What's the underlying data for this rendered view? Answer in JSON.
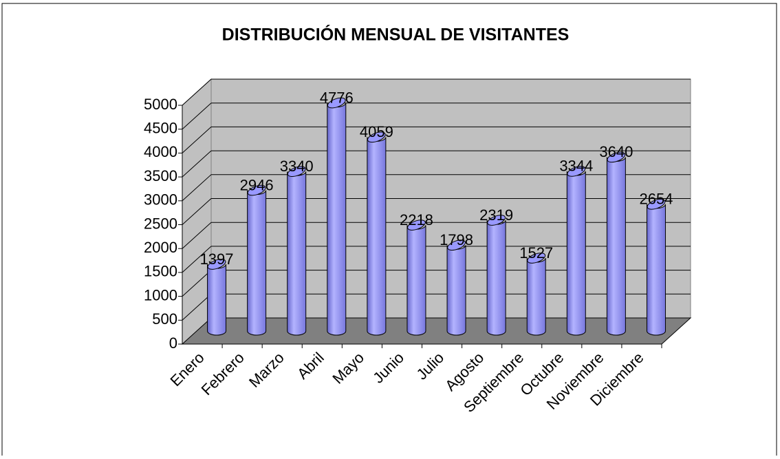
{
  "chart_data": {
    "type": "bar",
    "title": "DISTRIBUCIÓN MENSUAL DE VISITANTES",
    "categories": [
      "Enero",
      "Febrero",
      "Marzo",
      "Abril",
      "Mayo",
      "Junio",
      "Julio",
      "Agosto",
      "Septiembre",
      "Octubre",
      "Noviembre",
      "Diciembre"
    ],
    "values": [
      1397,
      2946,
      3340,
      4776,
      4059,
      2218,
      1798,
      2319,
      1527,
      3344,
      3640,
      2654
    ],
    "color": "#9999ff",
    "ylim": [
      0,
      5000
    ],
    "yticks": [
      0,
      500,
      1000,
      1500,
      2000,
      2500,
      3000,
      3500,
      4000,
      4500,
      5000
    ],
    "grid": true
  }
}
